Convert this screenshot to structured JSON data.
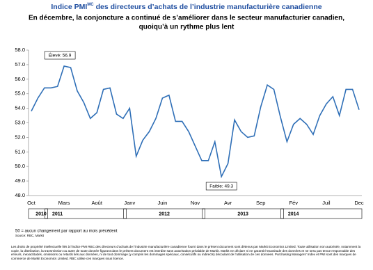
{
  "chart_data": {
    "type": "line",
    "title": "Indice PMI",
    "title_superscript": "MC",
    "title_rest": " des directeurs d’achats de l’industrie manufacturière canadienne",
    "subtitle": [
      "En décembre, la conjoncture a continué de s’améliorer dans le secteur manufacturier canadien,",
      "quoiqu’à un rythme plus lent"
    ],
    "categories": [
      "Oct",
      null,
      null,
      null,
      null,
      "Mars",
      null,
      null,
      null,
      null,
      "Août",
      null,
      null,
      null,
      null,
      "Janv",
      null,
      null,
      null,
      null,
      "Juin",
      null,
      null,
      null,
      null,
      "Nov",
      null,
      null,
      null,
      null,
      "Avr",
      null,
      null,
      null,
      null,
      "Sep",
      null,
      null,
      null,
      null,
      "Fév",
      null,
      null,
      null,
      null,
      "Juil",
      null,
      null,
      null,
      null,
      "Dec"
    ],
    "years": [
      "2010",
      "2011",
      "2012",
      "2013",
      "2014"
    ],
    "series": [
      {
        "name": "Indice PMI",
        "color": "#2f6fb7",
        "values": [
          53.8,
          54.7,
          55.4,
          55.4,
          55.5,
          56.9,
          56.8,
          55.2,
          54.4,
          53.3,
          53.7,
          55.3,
          55.4,
          53.6,
          53.3,
          54.0,
          50.7,
          51.8,
          52.4,
          53.3,
          54.7,
          54.9,
          53.1,
          53.1,
          52.4,
          51.4,
          50.4,
          50.4,
          51.7,
          49.3,
          50.2,
          53.2,
          52.4,
          52.0,
          52.1,
          54.1,
          55.6,
          55.3,
          53.4,
          51.7,
          52.9,
          53.3,
          52.9,
          52.2,
          53.5,
          54.3,
          54.8,
          53.5,
          55.3,
          55.3,
          53.9
        ]
      }
    ],
    "ylim": [
      48.0,
      58.0
    ],
    "yticks": [
      {
        "value": 48,
        "label": "48.0"
      },
      {
        "value": 49,
        "label": "49.0"
      },
      {
        "value": 50,
        "label": "50.0"
      },
      {
        "value": 51,
        "label": "51.0"
      },
      {
        "value": 52,
        "label": "52.0"
      },
      {
        "value": 53,
        "label": "53.0"
      },
      {
        "value": 54,
        "label": "54.0"
      },
      {
        "value": 55,
        "label": "55.0"
      },
      {
        "value": 56,
        "label": "56.0"
      },
      {
        "value": 57,
        "label": "57.0"
      },
      {
        "value": 58,
        "label": "58.0"
      }
    ],
    "annotations": [
      {
        "text": "Élevé: 56.9",
        "value": 56.9
      },
      {
        "text": "Faible: 49.3",
        "value": 49.3
      }
    ],
    "footnote": "50 = aucun changement par rapport au mois précédent",
    "source": "Source: RBC, Markit",
    "disclaimer": "Les droits de propriété intellectuelle liés à l’indice PMI RBC des directeurs d’achats de l’industrie manufacturière canadienne fourni dans le présent document sont détenus par Markit Economics Limited. Toute utilisation non autorisée, notamment la copie, la distribution, la transmission ou autre de toute donnée figurant dans le présent document est interdite sans autorisation préalable de Markit. Markit ne déclare ni ne garantit l’exactitude des données et ne sera pas tenue responsable des erreurs, inexactitudes, omissions ou retards liés aux données, ni de tout dommage (y compris les dommages spéciaux, consécutifs ou indirects) découlant de l’utilisation de ces données. Purchasing Managers’ Index et PMI sont des marques de commerce de Markit Economics Limited. RBC utilise ces marques sous licence."
  }
}
